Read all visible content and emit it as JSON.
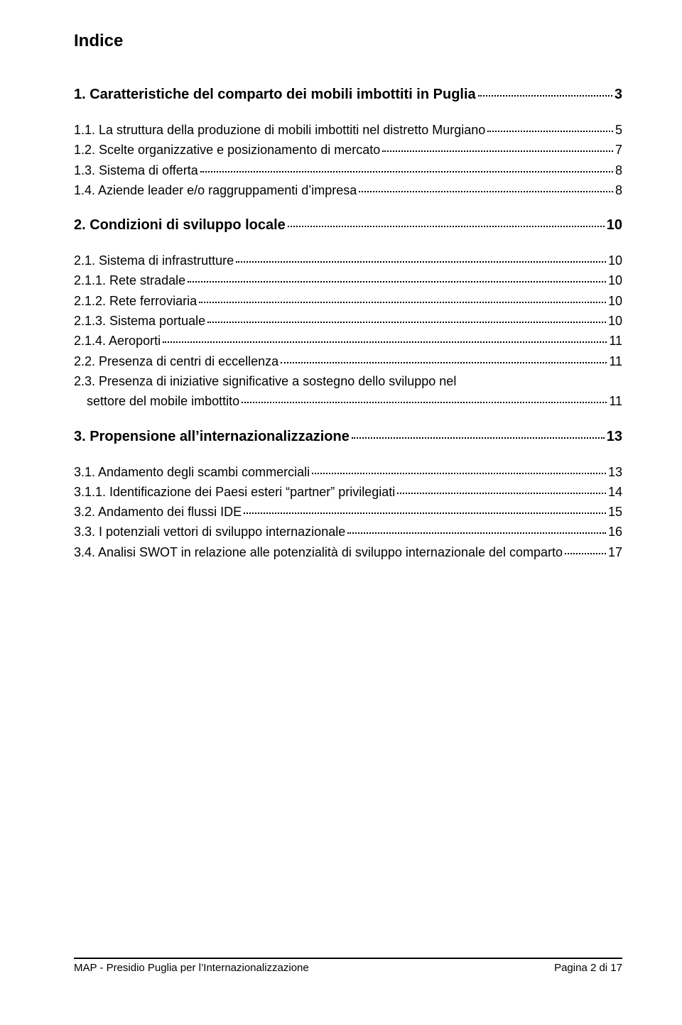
{
  "title": "Indice",
  "toc": {
    "sec1": {
      "label": "1. Caratteristiche del comparto dei mobili imbottiti in Puglia",
      "page": "3"
    },
    "s1_1": {
      "label": "1.1. La struttura della produzione di mobili imbottiti nel distretto Murgiano",
      "page": "5"
    },
    "s1_2": {
      "label": "1.2. Scelte organizzative e posizionamento di mercato",
      "page": "7"
    },
    "s1_3": {
      "label": "1.3. Sistema di offerta",
      "page": "8"
    },
    "s1_4": {
      "label": "1.4. Aziende leader e/o raggruppamenti d’impresa",
      "page": "8"
    },
    "sec2": {
      "label": "2. Condizioni di sviluppo locale",
      "page": "10"
    },
    "s2_1": {
      "label": "2.1. Sistema di infrastrutture",
      "page": "10"
    },
    "s2_1_1": {
      "label": "2.1.1. Rete stradale",
      "page": "10"
    },
    "s2_1_2": {
      "label": "2.1.2. Rete ferroviaria",
      "page": "10"
    },
    "s2_1_3": {
      "label": "2.1.3. Sistema portuale",
      "page": "10"
    },
    "s2_1_4": {
      "label": "2.1.4. Aeroporti",
      "page": "11"
    },
    "s2_2": {
      "label": "2.2. Presenza di centri di eccellenza",
      "page": "11"
    },
    "s2_3a": {
      "label": "2.3. Presenza di iniziative significative a sostegno dello sviluppo nel"
    },
    "s2_3b": {
      "label": "settore del mobile imbottito",
      "page": "11"
    },
    "sec3": {
      "label": "3. Propensione all’internazionalizzazione",
      "page": "13"
    },
    "s3_1": {
      "label": "3.1. Andamento degli scambi commerciali",
      "page": "13"
    },
    "s3_1_1": {
      "label": "3.1.1. Identificazione dei Paesi esteri “partner” privilegiati",
      "page": "14"
    },
    "s3_2": {
      "label": "3.2. Andamento dei flussi IDE",
      "page": "15"
    },
    "s3_3": {
      "label": "3.3. I potenziali vettori di sviluppo internazionale",
      "page": "16"
    },
    "s3_4": {
      "label": "3.4. Analisi SWOT in relazione alle potenzialità di sviluppo internazionale del comparto",
      "page": "17"
    }
  },
  "footer": {
    "left": "MAP - Presidio Puglia per l’Internazionalizzazione",
    "right": "Pagina 2 di 17"
  }
}
